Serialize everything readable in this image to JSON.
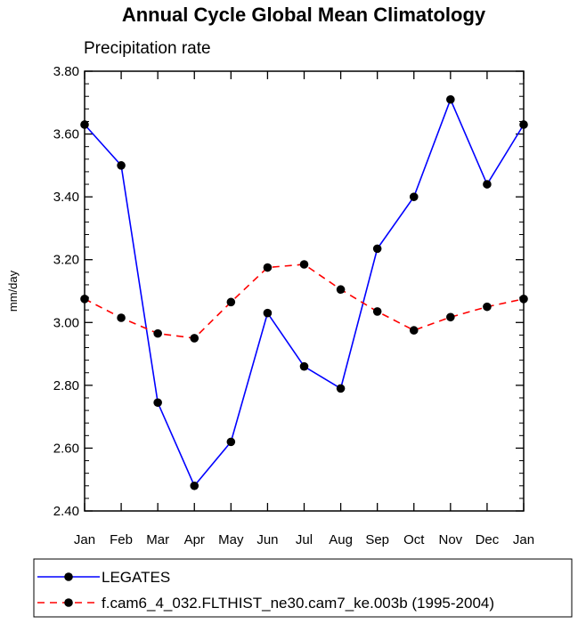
{
  "chart_data": {
    "type": "line",
    "title": "Annual Cycle Global Mean Climatology",
    "subtitle": "Precipitation rate",
    "xlabel": "",
    "ylabel": "mm/day",
    "categories": [
      "Jan",
      "Feb",
      "Mar",
      "Apr",
      "May",
      "Jun",
      "Jul",
      "Aug",
      "Sep",
      "Oct",
      "Nov",
      "Dec",
      "Jan"
    ],
    "ylim": [
      2.4,
      3.8
    ],
    "yticks": [
      "2.40",
      "2.60",
      "2.80",
      "3.00",
      "3.20",
      "3.40",
      "3.60",
      "3.80"
    ],
    "grid": false,
    "legend_position": "bottom",
    "series": [
      {
        "name": "LEGATES",
        "color": "#0000ff",
        "dashed": false,
        "values": [
          3.63,
          3.5,
          2.745,
          2.48,
          2.62,
          3.03,
          2.86,
          2.79,
          3.235,
          3.4,
          3.71,
          3.44,
          3.63
        ]
      },
      {
        "name": "f.cam6_4_032.FLTHIST_ne30.cam7_ke.003b (1995-2004)",
        "color": "#ff0000",
        "dashed": true,
        "values": [
          3.075,
          3.015,
          2.965,
          2.95,
          3.065,
          3.175,
          3.185,
          3.105,
          3.035,
          2.975,
          3.017,
          3.05,
          3.075
        ]
      }
    ]
  }
}
